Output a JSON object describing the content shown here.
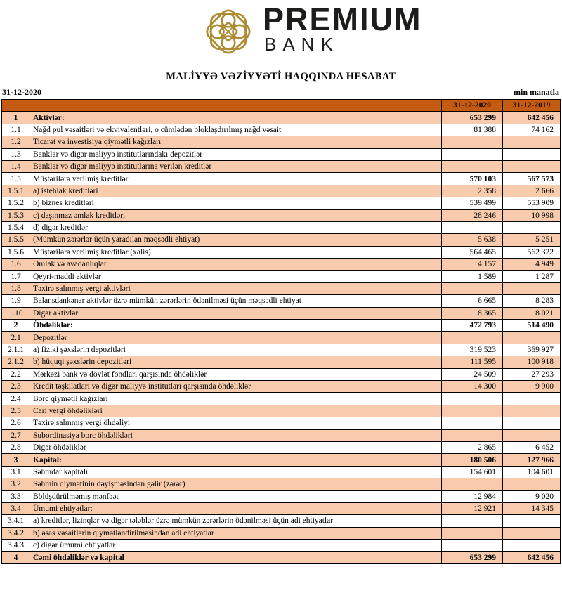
{
  "logo": {
    "brand_top": "PREMIUM",
    "brand_bottom": "BANK",
    "emblem": "gold-knot-emblem"
  },
  "title": "MALİYYƏ VƏZİYYƏTİ HAQQINDA HESABAT",
  "meta": {
    "date": "31-12-2020",
    "unit": "min manatla"
  },
  "colors": {
    "header_bg": "#C55A11",
    "row_alt_bg": "#F8CBAD",
    "brand_gold": "#AE8C33",
    "text": "#000000"
  },
  "table": {
    "col_2020": "31-12-2020",
    "col_2019": "31-12-2019",
    "rows": [
      {
        "no": "1",
        "label": "Aktivlər:",
        "v2020": "653 299",
        "v2019": "642 456",
        "bold": true
      },
      {
        "no": "1.1",
        "label": "Nağd pul vəsaitləri və  ekvivalentləri, o cümlədən bloklaşdırılmış nağd vəsait",
        "v2020": "81 388",
        "v2019": "74 162"
      },
      {
        "no": "1.2",
        "label": "Ticarət və investisiya qiymətli kağızları",
        "v2020": "",
        "v2019": ""
      },
      {
        "no": "1.3",
        "label": "Banklar və digər maliyyə institutlarındakı depozitlər",
        "v2020": "",
        "v2019": ""
      },
      {
        "no": "1.4",
        "label": "Banklar və digər maliyyə institutlarına verilən kreditlər",
        "v2020": "",
        "v2019": ""
      },
      {
        "no": "1.5",
        "label": "Müştərilərə verilmiş kreditlər",
        "v2020": "570 103",
        "v2019": "567 573",
        "values_bold": true
      },
      {
        "no": "1.5.1",
        "label": "a) istehlak kreditləri",
        "v2020": "2 358",
        "v2019": "2 666"
      },
      {
        "no": "1.5.2",
        "label": "b) biznes kreditləri",
        "v2020": "539 499",
        "v2019": "553 909"
      },
      {
        "no": "1.5.3",
        "label": "c) daşınmaz əmlak kreditləri",
        "v2020": "28 246",
        "v2019": "10 998"
      },
      {
        "no": "1.5.4",
        "label": "d) digər kreditlər",
        "v2020": "",
        "v2019": ""
      },
      {
        "no": "1.5.5",
        "label": "(Mümkün zərərlər üçün yaradılan məqsədli ehtiyat)",
        "v2020": "5 638",
        "v2019": "5 251"
      },
      {
        "no": "1.5.6",
        "label": "Müştərilərə verilmiş kreditlər (xalis)",
        "v2020": "564 465",
        "v2019": "562 322"
      },
      {
        "no": "1.6",
        "label": "Əmlak və avadanlıqlar",
        "v2020": "4 157",
        "v2019": "4 949"
      },
      {
        "no": "1.7",
        "label": "Qeyri-maddi aktivlər",
        "v2020": "1 589",
        "v2019": "1 287"
      },
      {
        "no": "1.8",
        "label": "Təxirə salınmış vergi aktivləri",
        "v2020": "",
        "v2019": ""
      },
      {
        "no": "1.9",
        "label": "Balansdankənar aktivlər üzrə mümkün zərərlərin ödənilməsi üçün məqsədli ehtiyat",
        "v2020": "6 665",
        "v2019": "8 283"
      },
      {
        "no": "1.10",
        "label": "Digər aktivlər",
        "v2020": "8 365",
        "v2019": "8 021"
      },
      {
        "no": "2",
        "label": "Öhdəliklər:",
        "v2020": "472 793",
        "v2019": "514 490",
        "bold": true
      },
      {
        "no": "2.1",
        "label": "Depozitlər",
        "v2020": "",
        "v2019": ""
      },
      {
        "no": "2.1.1",
        "label": "a) fiziki şəxslərin depozitləri",
        "v2020": "319 523",
        "v2019": "369 927"
      },
      {
        "no": "2.1.2",
        "label": "b) hüquqi şəxslərin depozitləri",
        "v2020": "111 595",
        "v2019": "100 918"
      },
      {
        "no": "2.2",
        "label": "Mərkəzi bank və dövlət fondları qarşısında öhdəliklər",
        "v2020": "24 509",
        "v2019": "27 293"
      },
      {
        "no": "2.3",
        "label": "Kredit təşkilatları və digər maliyyə institutları qarşısında öhdəliklər",
        "v2020": "14 300",
        "v2019": "9 900"
      },
      {
        "no": "2.4",
        "label": "Borc qiymətli kağızları",
        "v2020": "",
        "v2019": ""
      },
      {
        "no": "2.5",
        "label": "Cari vergi öhdəlikləri",
        "v2020": "",
        "v2019": ""
      },
      {
        "no": "2.6",
        "label": "Təxirə salınmış vergi öhdəliyi",
        "v2020": "",
        "v2019": ""
      },
      {
        "no": "2.7",
        "label": "Subordinasiya borc öhdəlikləri",
        "v2020": "",
        "v2019": ""
      },
      {
        "no": "2.8",
        "label": "Digər öhdəliklər",
        "v2020": "2 865",
        "v2019": "6 452"
      },
      {
        "no": "3",
        "label": "Kapital:",
        "v2020": "180 506",
        "v2019": "127 966",
        "bold": true
      },
      {
        "no": "3.1",
        "label": "Səhmdar kapitalı",
        "v2020": "154 601",
        "v2019": "104 601"
      },
      {
        "no": "3.2",
        "label": "Səhmin qiymətinin dəyişməsindən gəlir (zərər)",
        "v2020": "",
        "v2019": ""
      },
      {
        "no": "3.3",
        "label": "Bölüşdürülməmiş mənfəət",
        "v2020": "12 984",
        "v2019": "9 020"
      },
      {
        "no": "3.4",
        "label": "Ümumi ehtiyatlar:",
        "v2020": "12 921",
        "v2019": "14 345"
      },
      {
        "no": "3.4.1",
        "label": "a) kreditlər, lizinqlər və digər tələblər üzrə mümkün zərərlərin ödənilməsi üçün adi ehtiyatlar",
        "v2020": "",
        "v2019": ""
      },
      {
        "no": "3.4.2",
        "label": "b) əsas vəsaitlərin qiymətləndirilməsindən adi ehtiyatlar",
        "v2020": "",
        "v2019": ""
      },
      {
        "no": "3.4.3",
        "label": "c) digər ümumi ehtiyatlar",
        "v2020": "",
        "v2019": ""
      },
      {
        "no": "4",
        "label": "Cəmi öhdəliklər və kapital",
        "v2020": "653 299",
        "v2019": "642 456",
        "bold": true
      }
    ]
  }
}
